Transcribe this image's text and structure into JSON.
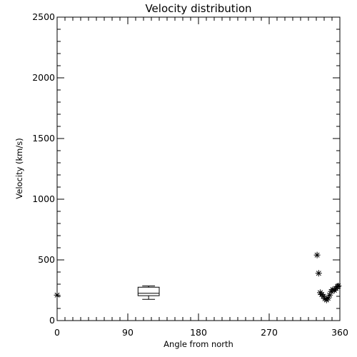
{
  "chart_data": {
    "type": "scatter",
    "title": "Velocity distribution",
    "xlabel": "Angle from north",
    "ylabel": "Velocity (km/s)",
    "xlim": [
      0,
      360
    ],
    "ylim": [
      0,
      2500
    ],
    "xticks": [
      0,
      90,
      180,
      270,
      360
    ],
    "yticks": [
      0,
      500,
      1000,
      1500,
      2000,
      2500
    ],
    "x_minor_step": 10,
    "y_minor_step": 100,
    "marker": "asterisk",
    "points": [
      {
        "x": 0,
        "y": 210
      },
      {
        "x": 331,
        "y": 540
      },
      {
        "x": 333,
        "y": 390
      },
      {
        "x": 335,
        "y": 230
      },
      {
        "x": 337,
        "y": 215
      },
      {
        "x": 339,
        "y": 200
      },
      {
        "x": 341,
        "y": 180
      },
      {
        "x": 343,
        "y": 170
      },
      {
        "x": 345,
        "y": 185
      },
      {
        "x": 347,
        "y": 210
      },
      {
        "x": 349,
        "y": 240
      },
      {
        "x": 351,
        "y": 255
      },
      {
        "x": 353,
        "y": 250
      },
      {
        "x": 355,
        "y": 265
      },
      {
        "x": 357,
        "y": 280
      },
      {
        "x": 358,
        "y": 285
      }
    ],
    "boxes": [
      {
        "x_min": 103,
        "x_max": 130,
        "whisker_low": 175,
        "q1": 205,
        "median": 225,
        "q3": 275,
        "whisker_high": 285
      }
    ]
  }
}
